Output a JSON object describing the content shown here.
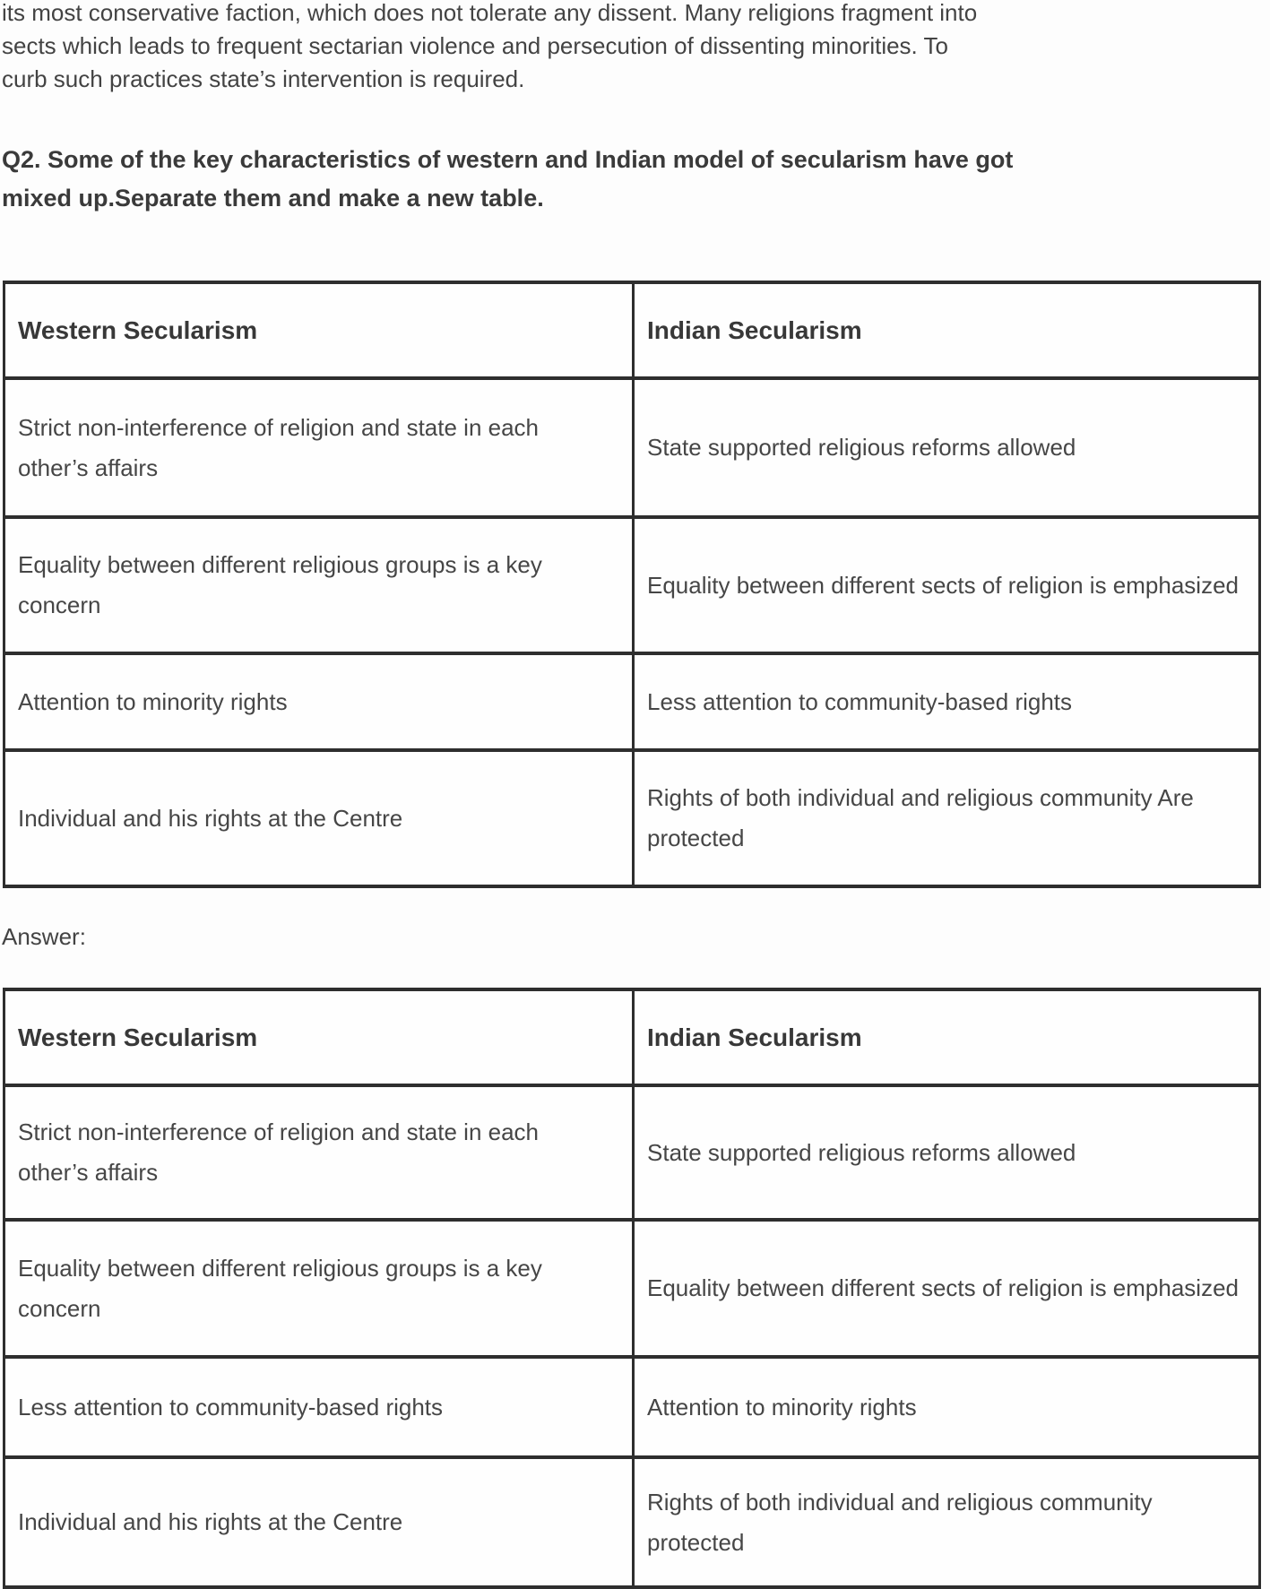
{
  "colors": {
    "text": "#414141",
    "border": "#2e2e2e",
    "background": "#fdfdfd"
  },
  "intro": {
    "lines": [
      "its most conservative faction, which does not tolerate any dissent. Many religions fragment into",
      "sects which leads to frequent sectarian violence and persecution of dissenting minorities. To",
      "curb such practices state’s intervention is required."
    ]
  },
  "question": {
    "lines": [
      "Q2. Some of the key characteristics of western and Indian model of secularism have got",
      "mixed up.Separate them and make a new table."
    ]
  },
  "answer_label": "Answer:",
  "mixed_table": {
    "headers": [
      "Western Secularism",
      "Indian Secularism"
    ],
    "rows": [
      [
        "Strict non-interference of religion and state in each other’s affairs",
        "State supported religious reforms allowed"
      ],
      [
        "Equality between different religious groups is a key concern",
        "Equality between different sects of religion is emphasized"
      ],
      [
        "Attention to minority rights",
        "Less attention to community-based rights"
      ],
      [
        "Individual and his rights at the Centre",
        "Rights of both individual and religious community Are protected"
      ]
    ]
  },
  "answer_table": {
    "headers": [
      "Western Secularism",
      "Indian Secularism"
    ],
    "rows": [
      [
        "Strict non-interference of religion and state in each other’s affairs",
        "State supported religious reforms allowed"
      ],
      [
        "Equality between different religious groups is a key concern",
        "Equality between different sects of religion is emphasized"
      ],
      [
        "Less attention to community-based rights",
        "Attention to minority rights"
      ],
      [
        "Individual and his rights at the Centre",
        "Rights of both individual and religious community protected"
      ]
    ]
  }
}
